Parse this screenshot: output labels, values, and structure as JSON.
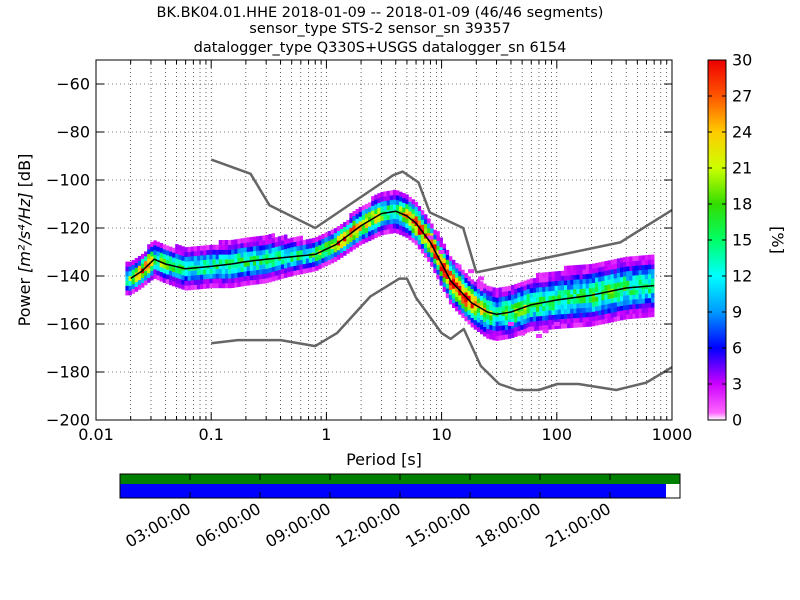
{
  "title": {
    "line1": "BK.BK04.01.HHE   2018-01-09 -- 2018-01-09  (46/46 segments)",
    "line2": "sensor_type STS-2 sensor_sn 39357",
    "line3": "datalogger_type Q330S+USGS datalogger_sn 6154"
  },
  "chart_data": {
    "type": "heatmap",
    "xlabel": "Period [s]",
    "ylabel_prefix": "Power ",
    "ylabel_units": "[m²/s⁴/Hz]",
    "ylabel_suffix": " [dB]",
    "x_scale": "log",
    "xlim": [
      0.01,
      1000
    ],
    "x_tick_labels": [
      "0.01",
      "0.1",
      "1",
      "10",
      "100",
      "1000"
    ],
    "ylim": [
      -200,
      -50
    ],
    "y_ticks": [
      -200,
      -180,
      -160,
      -140,
      -120,
      -100,
      -80,
      -60
    ],
    "y_tick_labels": [
      "−200",
      "−180",
      "−160",
      "−140",
      "−120",
      "−100",
      "−80",
      "−60"
    ],
    "grid": true,
    "colorbar": {
      "label": "[%]",
      "range": [
        0,
        30
      ],
      "ticks": [
        0,
        3,
        6,
        9,
        12,
        15,
        18,
        21,
        24,
        27,
        30
      ]
    },
    "noise_model_high": {
      "x": [
        0.1,
        0.22,
        0.32,
        0.8,
        3.8,
        4.6,
        6.3,
        7.9,
        15.4,
        20,
        354.8,
        1000
      ],
      "y": [
        -91.5,
        -97.4,
        -110.5,
        -120,
        -98,
        -96.5,
        -101,
        -113.5,
        -120,
        -138.5,
        -126,
        -112.5
      ]
    },
    "noise_model_low": {
      "x": [
        0.1,
        0.17,
        0.4,
        0.8,
        1.24,
        2.4,
        4.3,
        5,
        6,
        10,
        12,
        15.6,
        21.9,
        31.6,
        45,
        70,
        101,
        154,
        328,
        600,
        1000
      ],
      "y": [
        -168,
        -166.7,
        -166.7,
        -169.2,
        -163.7,
        -148.6,
        -141.1,
        -141.1,
        -149,
        -163.8,
        -166.2,
        -162.1,
        -177.5,
        -185,
        -187.5,
        -187.5,
        -185,
        -185,
        -187.5,
        -184.4,
        -178
      ]
    },
    "median_psd": {
      "x": [
        0.02,
        0.025,
        0.032,
        0.04,
        0.06,
        0.1,
        0.15,
        0.2,
        0.3,
        0.5,
        0.8,
        1.2,
        2,
        3,
        4,
        5,
        6,
        8,
        12,
        18,
        25,
        30,
        40,
        60,
        100,
        200,
        400,
        700
      ],
      "y": [
        -141,
        -138,
        -133,
        -135,
        -137,
        -136,
        -135,
        -134,
        -133,
        -132,
        -131,
        -127,
        -119,
        -114,
        -113,
        -115,
        -118,
        -126,
        -142,
        -151,
        -155,
        -156,
        -155,
        -152,
        -150,
        -148,
        -145,
        -144
      ]
    },
    "density_band_width_db": [
      6,
      6,
      7,
      7,
      8,
      8,
      9,
      9,
      9,
      7,
      6,
      6,
      7,
      8,
      8,
      8,
      8,
      8,
      9,
      9,
      10,
      10,
      10,
      10,
      11,
      12,
      12,
      12
    ],
    "x_start": 0.018,
    "x_end": 700,
    "sparse_points": [
      {
        "x": 8,
        "y": -124
      },
      {
        "x": 10,
        "y": -130
      },
      {
        "x": 14,
        "y": -136
      },
      {
        "x": 18,
        "y": -138
      },
      {
        "x": 22,
        "y": -141
      },
      {
        "x": 40,
        "y": -160
      },
      {
        "x": 50,
        "y": -164
      },
      {
        "x": 60,
        "y": -162
      },
      {
        "x": 70,
        "y": -165
      },
      {
        "x": 80,
        "y": -163
      },
      {
        "x": 100,
        "y": -160
      }
    ]
  },
  "timeline": {
    "labels": [
      "03:00:00",
      "06:00:00",
      "09:00:00",
      "12:00:00",
      "15:00:00",
      "18:00:00",
      "21:00:00"
    ],
    "top_bar_color": "#008000",
    "data_bar_color": "#0000ff",
    "data_coverage_fraction": 0.975
  }
}
